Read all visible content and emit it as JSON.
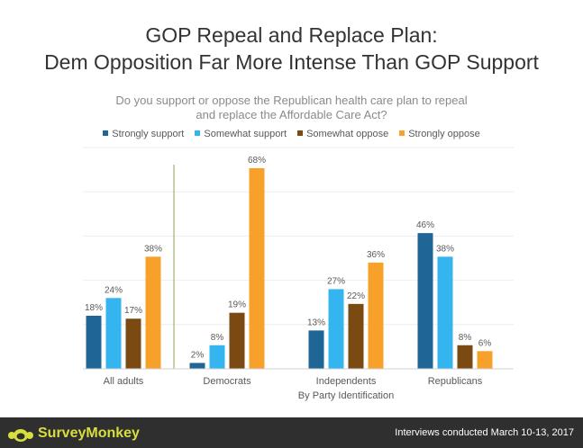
{
  "header": {
    "title_line1": "GOP Repeal and Replace Plan:",
    "title_line2": "Dem Opposition Far More Intense Than GOP Support",
    "subtitle_line1": "Do you support or oppose the Republican health care plan to repeal",
    "subtitle_line2": "and replace the Affordable Care Act?"
  },
  "footer": {
    "brand": "SurveyMonkey",
    "note": "Interviews conducted March 10-13, 2017",
    "brand_color": "#d7df3f"
  },
  "chart_data": {
    "type": "bar",
    "categories": [
      "All adults",
      "Democrats",
      "Independents",
      "Republicans"
    ],
    "xlabel": "By Party Identification",
    "ylim": [
      0,
      75
    ],
    "grid": true,
    "legend_position": "top-center",
    "series": [
      {
        "name": "Strongly support",
        "color": "#1f6696",
        "values": [
          18,
          2,
          13,
          46
        ],
        "labels": [
          "18%",
          "2%",
          "13%",
          "46%"
        ]
      },
      {
        "name": "Somewhat support",
        "color": "#35b5f0",
        "values": [
          24,
          8,
          27,
          38
        ],
        "labels": [
          "24%",
          "8%",
          "27%",
          "38%"
        ]
      },
      {
        "name": "Somewhat oppose",
        "color": "#7b4a12",
        "values": [
          17,
          19,
          22,
          8
        ],
        "labels": [
          "17%",
          "19%",
          "22%",
          "8%"
        ]
      },
      {
        "name": "Strongly oppose",
        "color": "#f7a12b",
        "values": [
          38,
          68,
          36,
          6
        ],
        "labels": [
          "38%",
          "68%",
          "36%",
          "6%"
        ]
      }
    ]
  }
}
